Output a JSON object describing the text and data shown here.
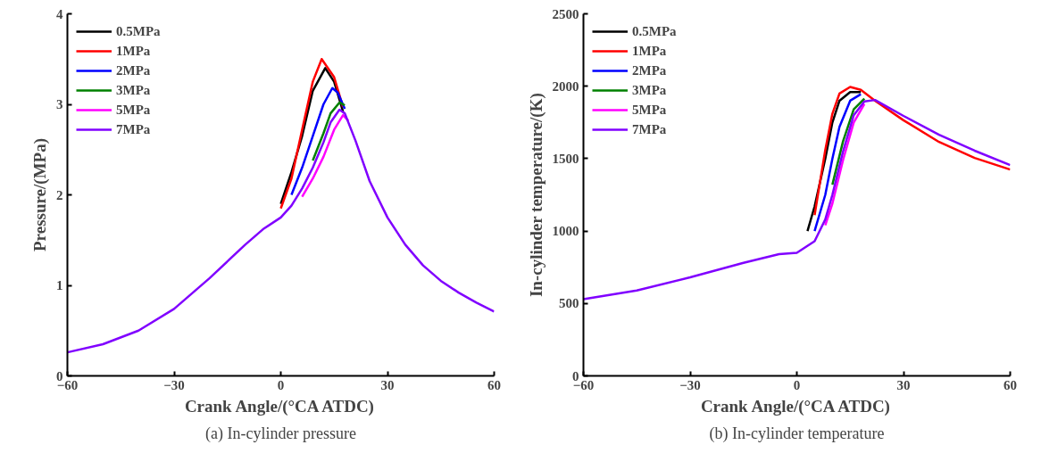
{
  "chart_data": [
    {
      "type": "line",
      "xlabel": "Crank Angle/(°CA ATDC)",
      "ylabel": "Pressure/(MPa)",
      "annotations": [
        "(a) In-cylinder pressure"
      ],
      "xlim": [
        -60,
        60
      ],
      "xticks": [
        -60,
        -30,
        0,
        30,
        60
      ],
      "ylim": [
        0,
        4
      ],
      "yticks": [
        0,
        1,
        2,
        3,
        4
      ],
      "grid": false,
      "legend": "top left",
      "line_style": "solid",
      "marker": "none",
      "series": [
        {
          "name": "0.5MPa",
          "color": "#000000",
          "x": [
            0,
            3,
            6,
            9,
            12.5,
            15,
            17.5
          ],
          "values": [
            1.9,
            2.25,
            2.65,
            3.15,
            3.4,
            3.25,
            2.92
          ]
        },
        {
          "name": "1MPa",
          "color": "#ff0000",
          "x": [
            0,
            3,
            6,
            9,
            11.5,
            15,
            17.5
          ],
          "values": [
            1.85,
            2.18,
            2.72,
            3.25,
            3.5,
            3.3,
            2.97
          ]
        },
        {
          "name": "2MPa",
          "color": "#0000ff",
          "x": [
            3,
            6,
            9,
            12,
            14.5,
            16,
            18
          ],
          "values": [
            2.0,
            2.3,
            2.65,
            3.0,
            3.18,
            3.13,
            2.95
          ]
        },
        {
          "name": "3MPa",
          "color": "#008000",
          "x": [
            9,
            12,
            14,
            16.5,
            18
          ],
          "values": [
            2.38,
            2.68,
            2.9,
            3.02,
            2.99
          ]
        },
        {
          "name": "5MPa",
          "color": "#ff00ff",
          "x": [
            6,
            9,
            12,
            15,
            17.5,
            19
          ],
          "values": [
            1.98,
            2.18,
            2.42,
            2.72,
            2.88,
            2.82
          ]
        },
        {
          "name": "7MPa",
          "color": "#8000ff",
          "x": [
            -60,
            -50,
            -40,
            -30,
            -20,
            -10,
            -5,
            0,
            3,
            6,
            9,
            12,
            14,
            16.5,
            18,
            21,
            25,
            30,
            35,
            40,
            45,
            50,
            55,
            60
          ],
          "values": [
            0.26,
            0.35,
            0.5,
            0.74,
            1.08,
            1.45,
            1.62,
            1.75,
            1.88,
            2.07,
            2.3,
            2.58,
            2.8,
            2.94,
            2.9,
            2.6,
            2.15,
            1.75,
            1.45,
            1.22,
            1.05,
            0.92,
            0.81,
            0.71
          ]
        }
      ]
    },
    {
      "type": "line",
      "xlabel": "Crank Angle/(°CA ATDC)",
      "ylabel": "In-cylinder temperature/(K)",
      "annotations": [
        "(b) In-cylinder temperature"
      ],
      "xlim": [
        -60,
        60
      ],
      "xticks": [
        -60,
        -30,
        0,
        30,
        60
      ],
      "ylim": [
        0,
        2500
      ],
      "yticks": [
        0,
        500,
        1000,
        1500,
        2000,
        2500
      ],
      "grid": false,
      "legend": "top left",
      "line_style": "solid",
      "marker": "none",
      "series": [
        {
          "name": "0.5MPa",
          "color": "#000000",
          "x": [
            3,
            5,
            8,
            10,
            12,
            15,
            18
          ],
          "values": [
            1000,
            1170,
            1500,
            1750,
            1900,
            1960,
            1960
          ]
        },
        {
          "name": "1MPa",
          "color": "#ff0000",
          "x": [
            5,
            8,
            10,
            12,
            15,
            18,
            22,
            30,
            40,
            50,
            60
          ],
          "values": [
            1110,
            1560,
            1810,
            1950,
            1995,
            1975,
            1900,
            1765,
            1615,
            1505,
            1425
          ]
        },
        {
          "name": "2MPa",
          "color": "#0000ff",
          "x": [
            5,
            8,
            10,
            12,
            15,
            18
          ],
          "values": [
            1000,
            1250,
            1500,
            1720,
            1900,
            1945
          ]
        },
        {
          "name": "3MPa",
          "color": "#008000",
          "x": [
            10,
            13,
            16,
            19
          ],
          "values": [
            1320,
            1620,
            1840,
            1915
          ]
        },
        {
          "name": "5MPa",
          "color": "#ff00ff",
          "x": [
            8,
            10,
            13,
            16,
            19
          ],
          "values": [
            1040,
            1190,
            1490,
            1750,
            1878
          ]
        },
        {
          "name": "7MPa",
          "color": "#8000ff",
          "x": [
            -60,
            -45,
            -30,
            -15,
            -5,
            0,
            5,
            8,
            10,
            13,
            16,
            19,
            22,
            30,
            40,
            50,
            60
          ],
          "values": [
            530,
            590,
            680,
            780,
            840,
            850,
            930,
            1080,
            1250,
            1550,
            1800,
            1895,
            1905,
            1795,
            1665,
            1555,
            1455
          ]
        }
      ]
    }
  ]
}
